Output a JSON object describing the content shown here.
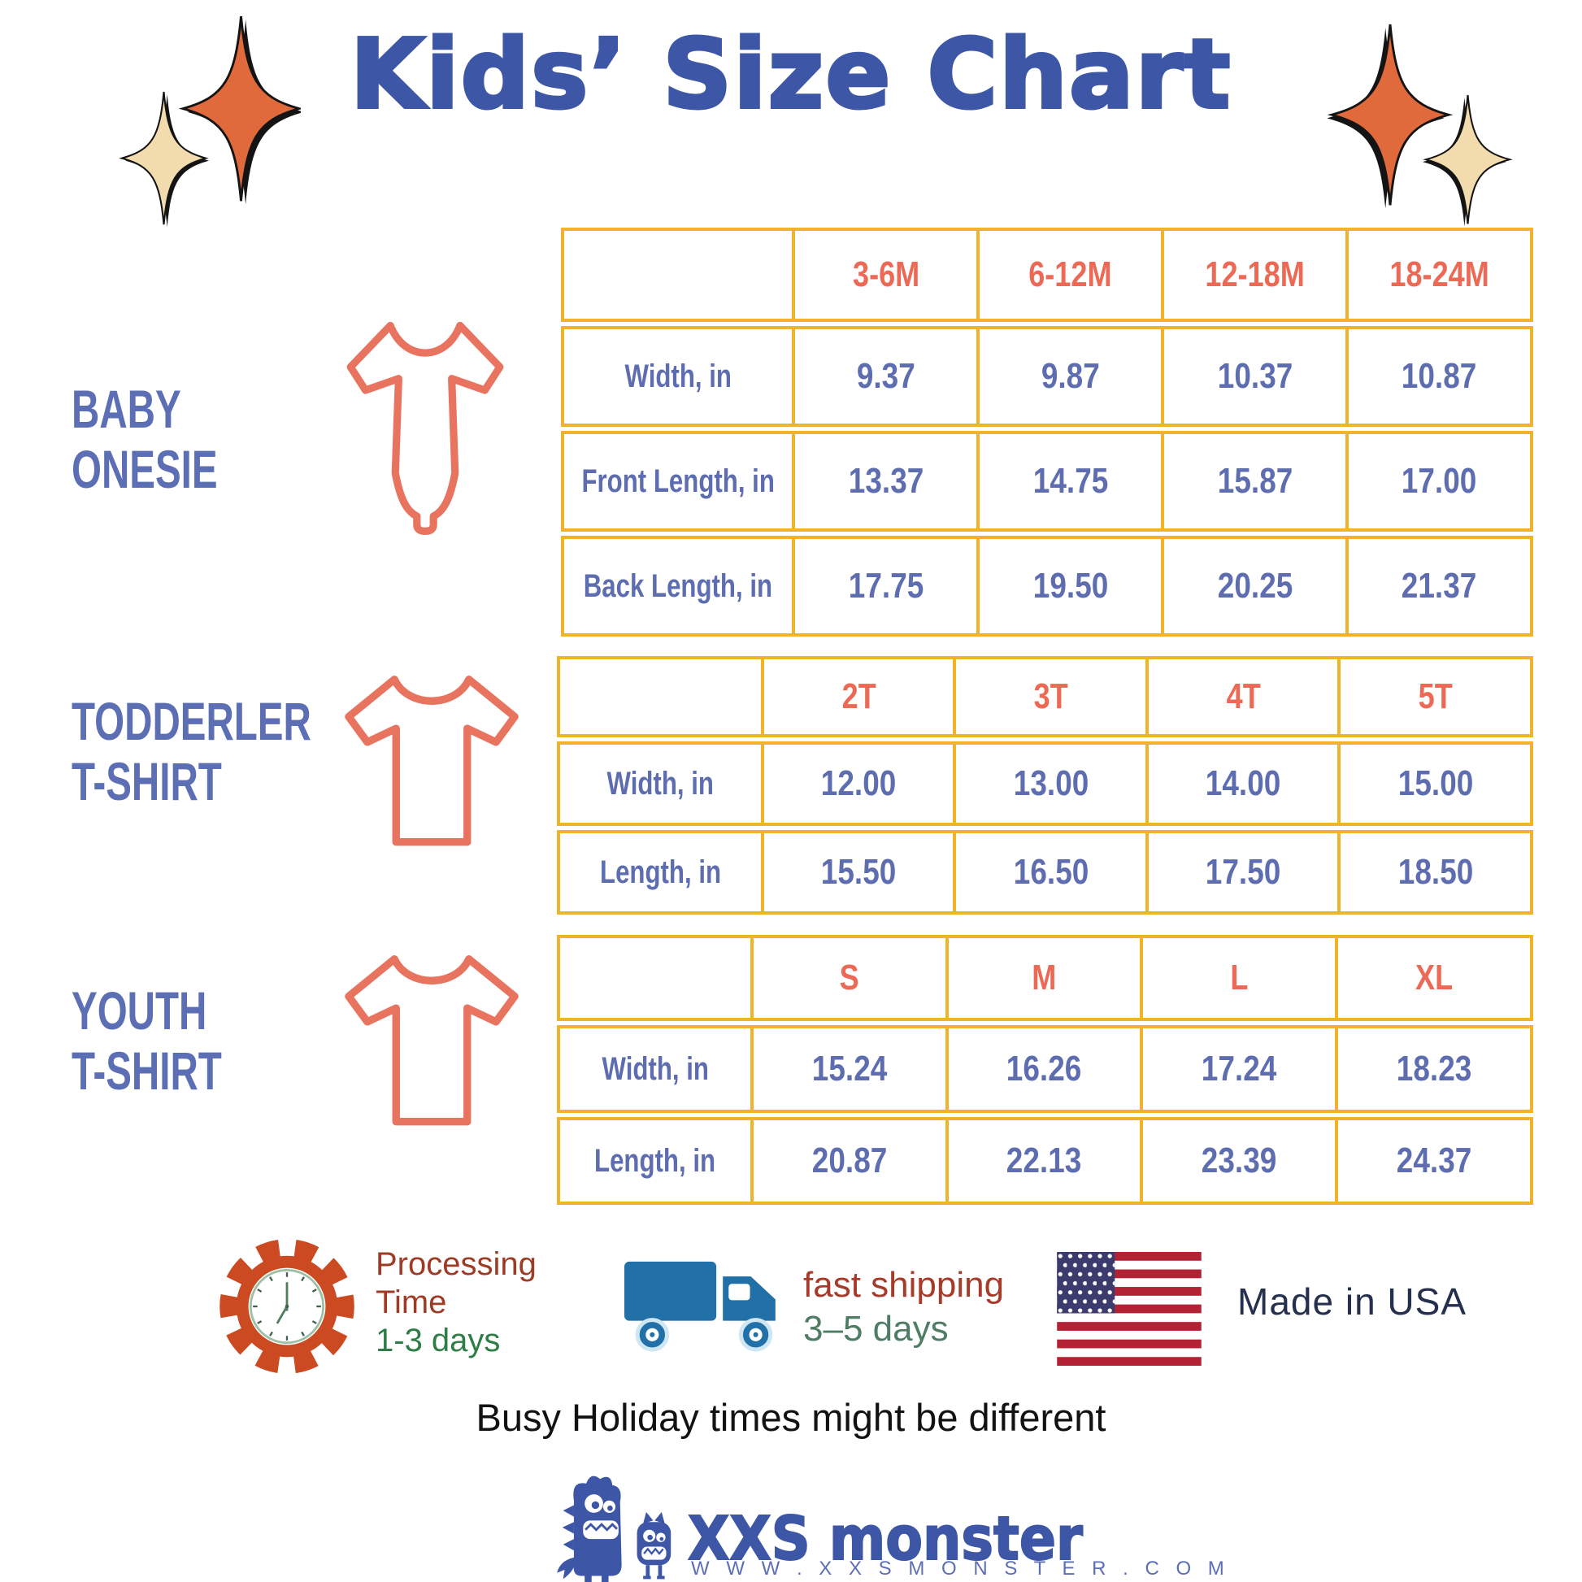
{
  "title": "Kids’ Size Chart",
  "sections": [
    {
      "label_lines": [
        "BABY",
        "ONESIE"
      ],
      "icon": "onesie-icon"
    },
    {
      "label_lines": [
        "TODDERLER",
        "T-SHIRT"
      ],
      "icon": "tshirt-icon"
    },
    {
      "label_lines": [
        "YOUTH",
        "T-SHIRT"
      ],
      "icon": "tshirt-icon"
    }
  ],
  "chart_data": [
    {
      "type": "table",
      "title": "BABY ONESIE",
      "columns": [
        "",
        "3-6M",
        "6-12M",
        "12-18M",
        "18-24M"
      ],
      "rows": [
        [
          "Width, in",
          "9.37",
          "9.87",
          "10.37",
          "10.87"
        ],
        [
          "Front Length, in",
          "13.37",
          "14.75",
          "15.87",
          "17.00"
        ],
        [
          "Back Length, in",
          "17.75",
          "19.50",
          "20.25",
          "21.37"
        ]
      ]
    },
    {
      "type": "table",
      "title": "TODDERLER T-SHIRT",
      "columns": [
        "",
        "2T",
        "3T",
        "4T",
        "5T"
      ],
      "rows": [
        [
          "Width, in",
          "12.00",
          "13.00",
          "14.00",
          "15.00"
        ],
        [
          "Length, in",
          "15.50",
          "16.50",
          "17.50",
          "18.50"
        ]
      ]
    },
    {
      "type": "table",
      "title": "YOUTH T-SHIRT",
      "columns": [
        "",
        "S",
        "M",
        "L",
        "XL"
      ],
      "rows": [
        [
          "Width, in",
          "15.24",
          "16.26",
          "17.24",
          "18.23"
        ],
        [
          "Length, in",
          "20.87",
          "22.13",
          "23.39",
          "24.37"
        ]
      ]
    }
  ],
  "footer": {
    "processing": {
      "line1": "Processing",
      "line2": "Time",
      "line3": "1-3 days"
    },
    "shipping": {
      "line1": "fast shipping",
      "line2": "3–5 days"
    },
    "made_in_usa": "Made in USA",
    "note": "Busy Holiday times might be different"
  },
  "brand": {
    "name": "XXS monster",
    "website": "W W W . X X S M O N S T E R . C O M"
  },
  "colors": {
    "title_blue": "#3D56A6",
    "value_blue": "#5D6DB0",
    "header_coral": "#EC6A55",
    "table_border_yellow": "#F0B32A",
    "garment_coral": "#E8735F",
    "star_orange": "#E06A3B",
    "star_cream": "#F2DCAD",
    "processing_red": "#9E3B25",
    "days_green": "#2F7D46",
    "truck_blue": "#2170A8",
    "flag_navy": "#3C3B6E",
    "flag_red": "#B22234",
    "made_in_navy": "#24304E"
  }
}
